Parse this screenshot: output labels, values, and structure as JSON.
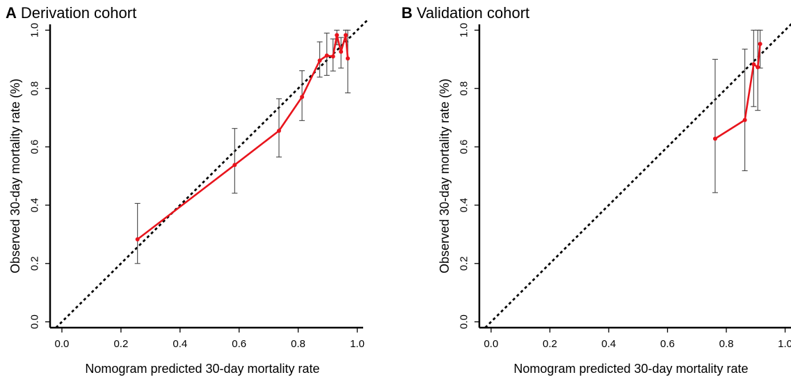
{
  "panels": [
    {
      "letter": "A",
      "title": "Derivation cohort"
    },
    {
      "letter": "B",
      "title": "Validation cohort"
    }
  ],
  "chart_data": [
    {
      "type": "line",
      "title": "Derivation cohort",
      "xlabel": "Nomogram predicted  30-day mortality rate",
      "ylabel": "Observed 30-day mortality rate (%)",
      "xlim": [
        -0.04,
        1.02
      ],
      "ylim": [
        -0.02,
        1.02
      ],
      "xticks": [
        0.0,
        0.2,
        0.4,
        0.6,
        0.8,
        1.0
      ],
      "yticks": [
        0.0,
        0.2,
        0.4,
        0.6,
        0.8,
        1.0
      ],
      "tick_labels": [
        "0.0",
        "0.2",
        "0.4",
        "0.6",
        "0.8",
        "1.0"
      ],
      "reference_line": "dashed diagonal y = x",
      "grid": false,
      "line_color": "#e8141c",
      "points": [
        {
          "x": 0.256,
          "y": 0.283,
          "lower": 0.2,
          "upper": 0.406
        },
        {
          "x": 0.585,
          "y": 0.538,
          "lower": 0.441,
          "upper": 0.663
        },
        {
          "x": 0.735,
          "y": 0.655,
          "lower": 0.565,
          "upper": 0.765
        },
        {
          "x": 0.813,
          "y": 0.771,
          "lower": 0.69,
          "upper": 0.861
        },
        {
          "x": 0.873,
          "y": 0.896,
          "lower": 0.839,
          "upper": 0.96
        },
        {
          "x": 0.897,
          "y": 0.913,
          "lower": 0.845,
          "upper": 0.99
        },
        {
          "x": 0.918,
          "y": 0.91,
          "lower": 0.86,
          "upper": 0.97
        },
        {
          "x": 0.931,
          "y": 0.983,
          "lower": 0.95,
          "upper": 1.0
        },
        {
          "x": 0.945,
          "y": 0.926,
          "lower": 0.87,
          "upper": 0.975
        },
        {
          "x": 0.961,
          "y": 0.983,
          "lower": 0.96,
          "upper": 1.0
        },
        {
          "x": 0.968,
          "y": 0.903,
          "lower": 0.785,
          "upper": 1.0
        }
      ]
    },
    {
      "type": "line",
      "title": "Validation cohort",
      "xlabel": "Nomogram predicted  30-day mortality rate",
      "ylabel": "Observed 30-day mortality rate (%)",
      "xlim": [
        -0.04,
        1.02
      ],
      "ylim": [
        -0.02,
        1.02
      ],
      "xticks": [
        0.0,
        0.2,
        0.4,
        0.6,
        0.8,
        1.0
      ],
      "yticks": [
        0.0,
        0.2,
        0.4,
        0.6,
        0.8,
        1.0
      ],
      "tick_labels": [
        "0.0",
        "0.2",
        "0.4",
        "0.6",
        "0.8",
        "1.0"
      ],
      "reference_line": "dashed diagonal y = x",
      "grid": false,
      "line_color": "#e8141c",
      "points": [
        {
          "x": 0.762,
          "y": 0.628,
          "lower": 0.443,
          "upper": 0.9
        },
        {
          "x": 0.863,
          "y": 0.692,
          "lower": 0.518,
          "upper": 0.935
        },
        {
          "x": 0.893,
          "y": 0.883,
          "lower": 0.738,
          "upper": 1.0
        },
        {
          "x": 0.907,
          "y": 0.873,
          "lower": 0.725,
          "upper": 1.0
        },
        {
          "x": 0.915,
          "y": 0.953,
          "lower": 0.87,
          "upper": 1.0
        }
      ]
    }
  ]
}
